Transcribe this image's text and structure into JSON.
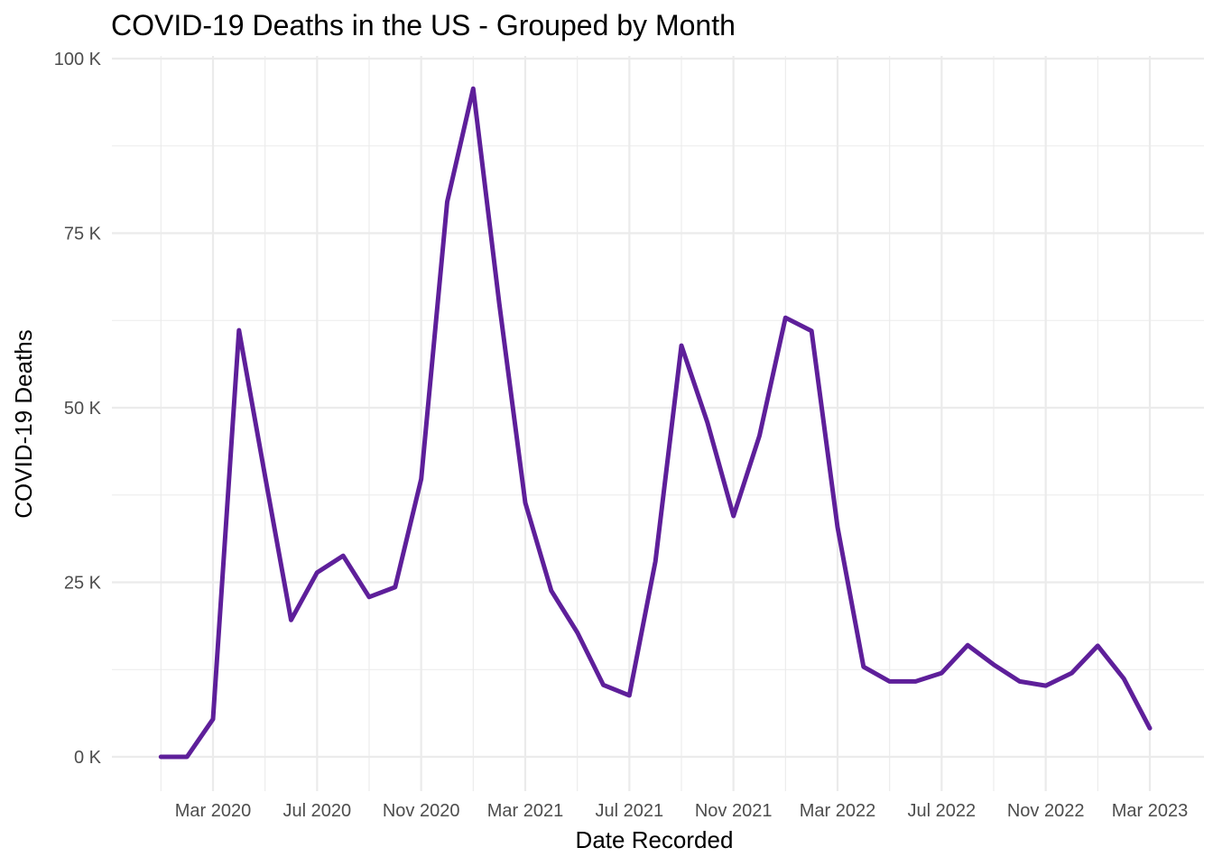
{
  "chart_data": {
    "type": "line",
    "title": "COVID-19 Deaths in the US - Grouped by Month",
    "xlabel": "Date Recorded",
    "ylabel": "COVID-19 Deaths",
    "ylim": [
      0,
      100000
    ],
    "yticks": [
      0,
      25000,
      50000,
      75000,
      100000
    ],
    "ytick_labels": [
      "0 K",
      "25 K",
      "50 K",
      "75 K",
      "100 K"
    ],
    "xticks": [
      "2020-03",
      "2020-07",
      "2020-11",
      "2021-03",
      "2021-07",
      "2021-11",
      "2022-03",
      "2022-07",
      "2022-11",
      "2023-03"
    ],
    "xtick_labels": [
      "Mar 2020",
      "Jul 2020",
      "Nov 2020",
      "Mar 2021",
      "Jul 2021",
      "Nov 2021",
      "Mar 2022",
      "Jul 2022",
      "Nov 2022",
      "Mar 2023"
    ],
    "grid": true,
    "legend": "none",
    "series": [
      {
        "name": "COVID-19 Deaths",
        "color": "#5e1f9a",
        "x": [
          "2020-01",
          "2020-02",
          "2020-03",
          "2020-04",
          "2020-05",
          "2020-06",
          "2020-07",
          "2020-08",
          "2020-09",
          "2020-10",
          "2020-11",
          "2020-12",
          "2021-01",
          "2021-02",
          "2021-03",
          "2021-04",
          "2021-05",
          "2021-06",
          "2021-07",
          "2021-08",
          "2021-09",
          "2021-10",
          "2021-11",
          "2021-12",
          "2022-01",
          "2022-02",
          "2022-03",
          "2022-04",
          "2022-05",
          "2022-06",
          "2022-07",
          "2022-08",
          "2022-09",
          "2022-10",
          "2022-11",
          "2022-12",
          "2023-01",
          "2023-02",
          "2023-03"
        ],
        "values": [
          0,
          0,
          5400,
          61100,
          40200,
          19600,
          26400,
          28800,
          22900,
          24300,
          39800,
          79500,
          95700,
          64900,
          36400,
          23800,
          17800,
          10300,
          8800,
          28000,
          58900,
          47900,
          34500,
          46000,
          62900,
          61000,
          32900,
          12900,
          10800,
          10800,
          12000,
          16000,
          13200,
          10800,
          10200,
          12000,
          15900,
          11200,
          4100
        ]
      }
    ]
  }
}
